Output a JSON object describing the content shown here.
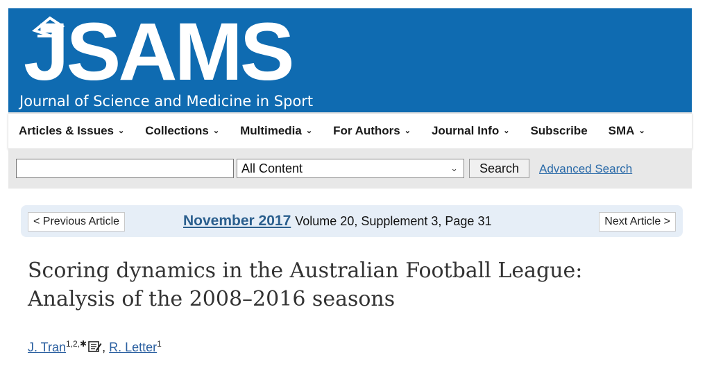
{
  "header": {
    "logo_text": "JSAMS",
    "subtitle": "Journal of Science and Medicine in Sport"
  },
  "nav": {
    "items": [
      {
        "label": "Articles & Issues",
        "has_menu": true
      },
      {
        "label": "Collections",
        "has_menu": true
      },
      {
        "label": "Multimedia",
        "has_menu": true
      },
      {
        "label": "For Authors",
        "has_menu": true
      },
      {
        "label": "Journal Info",
        "has_menu": true
      },
      {
        "label": "Subscribe",
        "has_menu": false
      },
      {
        "label": "SMA",
        "has_menu": true
      }
    ],
    "chevron": "⌄"
  },
  "search": {
    "input_value": "",
    "scope_selected": "All Content",
    "button_label": "Search",
    "advanced_label": "Advanced Search"
  },
  "issue": {
    "prev_label": "< Previous Article",
    "next_label": "Next Article >",
    "date": "November 2017",
    "volume_text": "Volume 20, Supplement 3, Page 31"
  },
  "article": {
    "title_line1": "Scoring dynamics in the Australian Football League:",
    "title_line2": "Analysis of the 2008–2016 seasons",
    "authors": [
      {
        "name": "J. Tran",
        "affil": "1,2,",
        "corresponding": true
      },
      {
        "name": "R. Letter",
        "affil": "1",
        "corresponding": false
      }
    ],
    "corresponding_marker": "✱",
    "separator": ","
  },
  "colors": {
    "brand_blue": "#0f6bb1",
    "link_blue": "#2a6aa8",
    "issue_bar": "#e6eef7"
  }
}
